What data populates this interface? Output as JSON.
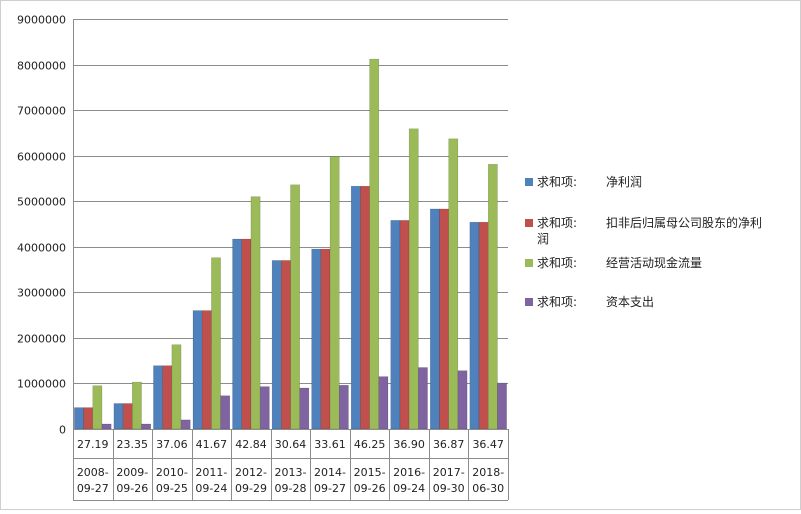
{
  "chart_data": {
    "type": "bar",
    "title": "",
    "xlabel": "",
    "ylabel": "",
    "ylim": [
      0,
      9000000
    ],
    "yticks": [
      0,
      1000000,
      2000000,
      3000000,
      4000000,
      5000000,
      6000000,
      7000000,
      8000000,
      9000000
    ],
    "grid": true,
    "legend_position": "right",
    "category_top_labels": [
      "27.19",
      "23.35",
      "37.06",
      "41.67",
      "42.84",
      "30.64",
      "33.61",
      "46.25",
      "36.90",
      "36.87",
      "36.47"
    ],
    "category_date_lines": [
      [
        "2008-",
        "09-27"
      ],
      [
        "2009-",
        "09-26"
      ],
      [
        "2010-",
        "09-25"
      ],
      [
        "2011-",
        "09-24"
      ],
      [
        "2012-",
        "09-29"
      ],
      [
        "2013-",
        "09-28"
      ],
      [
        "2014-",
        "09-27"
      ],
      [
        "2015-",
        "09-26"
      ],
      [
        "2016-",
        "09-24"
      ],
      [
        "2017-",
        "09-30"
      ],
      [
        "2018-",
        "06-30"
      ]
    ],
    "series": [
      {
        "name_prefix": "求和项:",
        "name": "净利润",
        "color": "#4F81BD",
        "values": [
          470000,
          560000,
          1390000,
          2600000,
          4170000,
          3700000,
          3950000,
          5330000,
          4580000,
          4830000,
          4540000
        ]
      },
      {
        "name_prefix": "求和项:",
        "name": "扣非后归属母公司股东的净利润",
        "color": "#C0504D",
        "values": [
          470000,
          560000,
          1390000,
          2600000,
          4170000,
          3700000,
          3950000,
          5330000,
          4580000,
          4830000,
          4540000
        ]
      },
      {
        "name_prefix": "求和项:",
        "name": "经营活动现金流量",
        "color": "#9BBB59",
        "values": [
          950000,
          1030000,
          1850000,
          3760000,
          5100000,
          5360000,
          5980000,
          8120000,
          6590000,
          6370000,
          5810000
        ]
      },
      {
        "name_prefix": "求和项:",
        "name": "资本支出",
        "color": "#8064A2",
        "values": [
          110000,
          110000,
          200000,
          730000,
          930000,
          900000,
          960000,
          1150000,
          1350000,
          1280000,
          1010000
        ]
      }
    ]
  }
}
